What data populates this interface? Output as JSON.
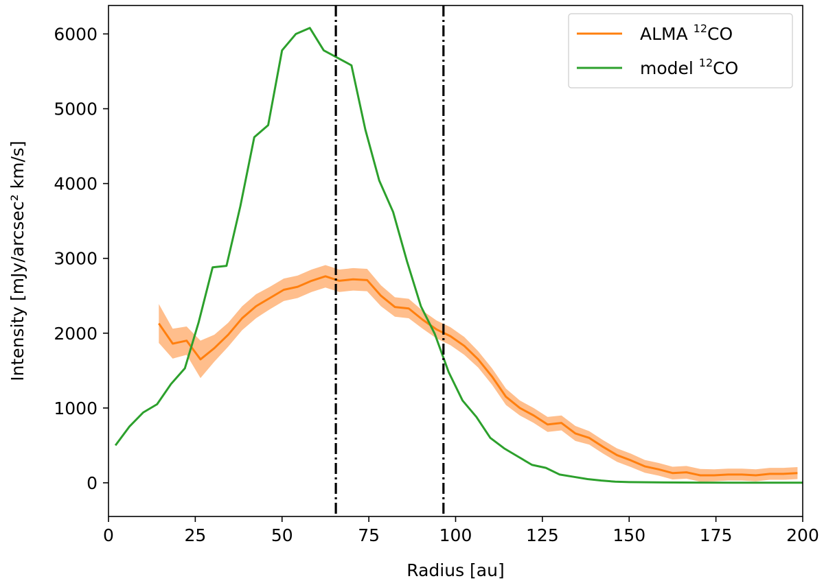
{
  "chart_data": {
    "type": "line",
    "title": "",
    "xlabel": "Radius [au]",
    "ylabel": "Intensity [mJy/arcsec² km/s]",
    "xlim": [
      0,
      200
    ],
    "ylim": [
      -450,
      6380
    ],
    "xticks": [
      0,
      25,
      50,
      75,
      100,
      125,
      150,
      175,
      200
    ],
    "yticks": [
      0,
      1000,
      2000,
      3000,
      4000,
      5000,
      6000
    ],
    "grid": false,
    "legend_position": "top-right",
    "vlines": [
      65.5,
      96.5
    ],
    "series": [
      {
        "name": "ALMA ¹²CO",
        "legend_main": "ALMA ",
        "legend_sup": "12",
        "legend_tail": "CO",
        "color": "#ff7f0e",
        "band_color": "#ffbe8c",
        "x": [
          14.5,
          18.5,
          22.5,
          26.5,
          30.5,
          34.5,
          38.5,
          42.5,
          46.5,
          50.5,
          54.5,
          58.5,
          62.5,
          66.5,
          70.5,
          74.5,
          78.5,
          82.5,
          86.5,
          90.5,
          94.5,
          98.5,
          102.5,
          106.5,
          110.5,
          114.5,
          118.5,
          122.5,
          126.5,
          130.5,
          134.5,
          138.5,
          142.5,
          146.5,
          150.5,
          154.5,
          158.5,
          162.5,
          166.5,
          170.5,
          174.5,
          178.5,
          182.5,
          186.5,
          190.5,
          194.5,
          198.5
        ],
        "y": [
          2130,
          1860,
          1900,
          1650,
          1800,
          1980,
          2200,
          2360,
          2470,
          2580,
          2620,
          2700,
          2760,
          2700,
          2720,
          2710,
          2500,
          2350,
          2330,
          2180,
          2050,
          1960,
          1830,
          1650,
          1420,
          1150,
          1000,
          900,
          780,
          800,
          660,
          600,
          480,
          370,
          300,
          220,
          180,
          130,
          140,
          100,
          100,
          110,
          110,
          100,
          120,
          120,
          130
        ],
        "err": [
          260,
          200,
          190,
          250,
          180,
          160,
          160,
          160,
          150,
          150,
          150,
          150,
          150,
          150,
          150,
          150,
          140,
          130,
          130,
          120,
          120,
          120,
          120,
          110,
          110,
          110,
          100,
          100,
          100,
          100,
          100,
          90,
          90,
          90,
          90,
          85,
          85,
          85,
          85,
          85,
          80,
          80,
          80,
          80,
          80,
          80,
          80
        ]
      },
      {
        "name": "model ¹²CO",
        "legend_main": "model ",
        "legend_sup": "12",
        "legend_tail": "CO",
        "color": "#2ca02c",
        "x": [
          2,
          6,
          10,
          14,
          18,
          22,
          26,
          30,
          34,
          38,
          42,
          46,
          50,
          54,
          58,
          62,
          66,
          70,
          74,
          78,
          82,
          86,
          90,
          94,
          98,
          102,
          106,
          110,
          114,
          118,
          122,
          126,
          130,
          134,
          138,
          142,
          146,
          150,
          160,
          170,
          180,
          190,
          200
        ],
        "y": [
          500,
          750,
          940,
          1050,
          1320,
          1530,
          2150,
          2880,
          2900,
          3700,
          4620,
          4780,
          5780,
          6000,
          6080,
          5780,
          5680,
          5580,
          4720,
          4040,
          3620,
          2960,
          2360,
          1990,
          1480,
          1100,
          880,
          600,
          460,
          350,
          240,
          200,
          110,
          80,
          50,
          30,
          15,
          10,
          5,
          3,
          2,
          1,
          1
        ]
      }
    ]
  }
}
